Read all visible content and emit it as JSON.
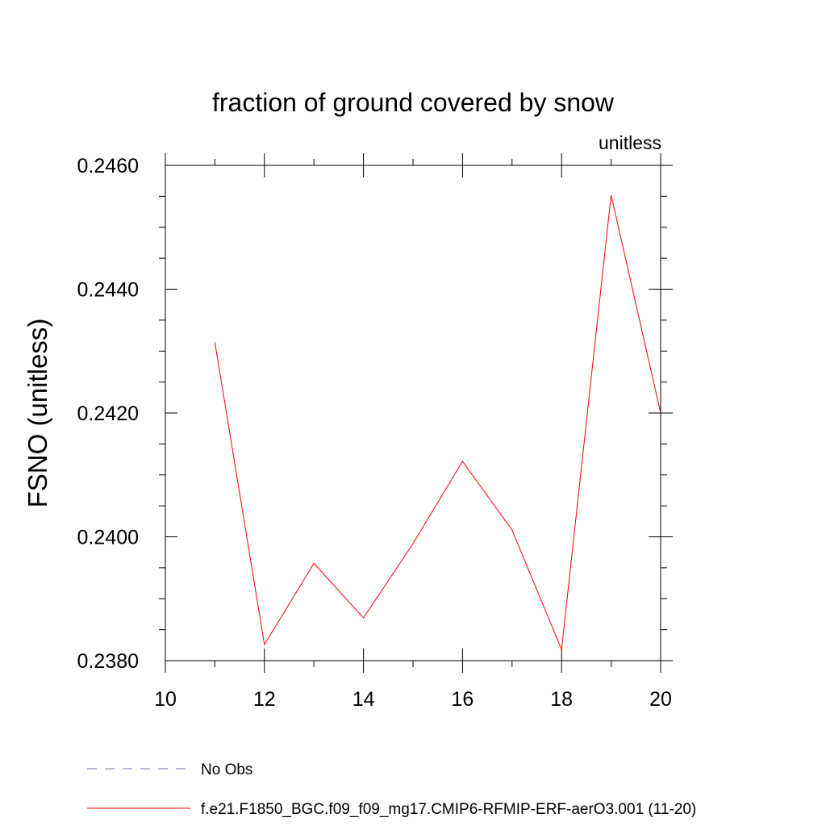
{
  "chart_data": {
    "type": "line",
    "title": "fraction of ground covered by snow",
    "units_label": "unitless",
    "ylabel": "FSNO  (unitless)",
    "xlabel": "",
    "xlim": [
      10,
      20
    ],
    "ylim": [
      0.238,
      0.246
    ],
    "x_ticks": [
      10,
      12,
      14,
      16,
      18,
      20
    ],
    "x_tick_labels": [
      "10",
      "12",
      "14",
      "16",
      "18",
      "20"
    ],
    "x_minor_ticks": [
      11,
      13,
      15,
      17,
      19
    ],
    "y_ticks": [
      0.238,
      0.24,
      0.242,
      0.244,
      0.246
    ],
    "y_tick_labels": [
      "0.2380",
      "0.2400",
      "0.2420",
      "0.2440",
      "0.2460"
    ],
    "y_minor_step": 0.0005,
    "grid": false,
    "legend_position": "bottom",
    "series": [
      {
        "name": "No Obs",
        "color": "#7b6fb0",
        "dash": true,
        "x": [],
        "y": []
      },
      {
        "name": "f.e21.F1850_BGC.f09_f09_mg17.CMIP6-RFMIP-ERF-aerO3.001 (11-20)",
        "color": "#ff0000",
        "dash": false,
        "x": [
          11,
          12,
          13,
          14,
          15,
          16,
          17,
          18,
          19,
          20
        ],
        "y": [
          0.24314,
          0.23826,
          0.23957,
          0.23869,
          0.23989,
          0.24122,
          0.24011,
          0.23818,
          0.24552,
          0.242
        ]
      }
    ]
  }
}
